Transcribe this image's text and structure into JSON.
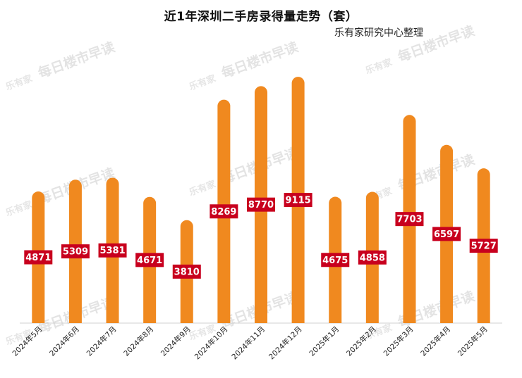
{
  "title": "近1年深圳二手房录得量走势（套）",
  "subtitle": "乐有家研究中心整理",
  "watermark": {
    "logo": "乐有家",
    "text": "每日楼市早读"
  },
  "colors": {
    "bar": "#f0891f",
    "label_bg": "#c8001e",
    "label_text": "#ffffff"
  },
  "chart_data": {
    "type": "bar",
    "title": "近1年深圳二手房录得量走势（套）",
    "subtitle": "乐有家研究中心整理",
    "xlabel": "",
    "ylabel": "套",
    "ylim": [
      0,
      9300
    ],
    "grid": false,
    "legend": "none",
    "categories": [
      "2024年5月",
      "2024年6月",
      "2024年7月",
      "2024年8月",
      "2024年9月",
      "2024年10月",
      "2024年11月",
      "2024年12月",
      "2025年1月",
      "2025年2月",
      "2025年3月",
      "2025年4月",
      "2025年5月"
    ],
    "values": [
      4871,
      5309,
      5381,
      4671,
      3810,
      8269,
      8770,
      9115,
      4675,
      4858,
      7703,
      6597,
      5727
    ]
  }
}
